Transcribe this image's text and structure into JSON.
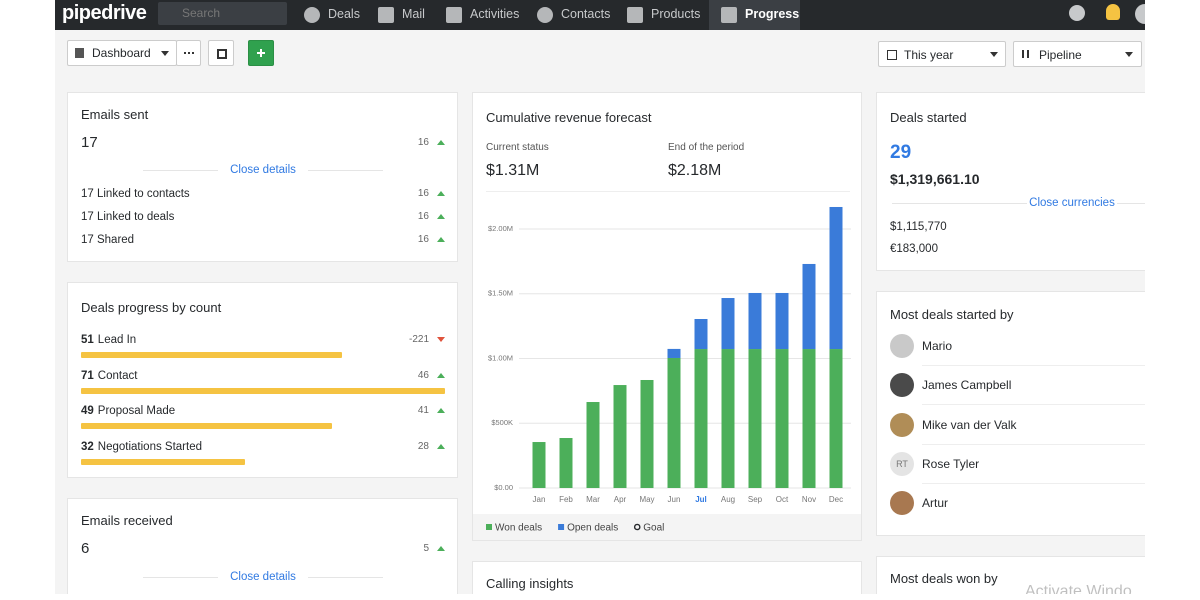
{
  "nav": {
    "logo": "pipedrive",
    "search": "Search",
    "items": [
      "Deals",
      "Mail",
      "Activities",
      "Contacts",
      "Products",
      "Progress"
    ],
    "active_index": 5
  },
  "toolbar": {
    "dashboard": "Dashboard",
    "period": "This year",
    "pipeline": "Pipeline"
  },
  "emails_sent": {
    "title": "Emails sent",
    "value": 17,
    "change": 16,
    "link": "Close details",
    "rows": [
      {
        "label": "17 Linked to contacts",
        "change": 16
      },
      {
        "label": "17 Linked to deals",
        "change": 16
      },
      {
        "label": "17 Shared",
        "change": 16
      }
    ]
  },
  "deals_progress": {
    "title": "Deals progress by count",
    "stages": [
      {
        "count": 51,
        "name": "Lead In",
        "change": -221
      },
      {
        "count": 71,
        "name": "Contact",
        "change": 46
      },
      {
        "count": 49,
        "name": "Proposal Made",
        "change": 41
      },
      {
        "count": 32,
        "name": "Negotiations Started",
        "change": 28
      }
    ]
  },
  "emails_received": {
    "title": "Emails received",
    "value": 6,
    "change": 5,
    "link": "Close details"
  },
  "chart_data": {
    "type": "bar",
    "stacked": true,
    "title": "Cumulative revenue forecast",
    "current_status_label": "Current status",
    "current_status": "$1.31M",
    "end_label": "End of the period",
    "end_value": "$2.18M",
    "categories": [
      "Jan",
      "Feb",
      "Mar",
      "Apr",
      "May",
      "Jun",
      "Jul",
      "Aug",
      "Sep",
      "Oct",
      "Nov",
      "Dec"
    ],
    "highlight_index": 6,
    "series": [
      {
        "name": "Won deals",
        "color": "#4caf5a",
        "values": [
          355000,
          386000,
          664000,
          795000,
          834000,
          1004000,
          1073000,
          1073000,
          1073000,
          1073000,
          1073000,
          1073000
        ]
      },
      {
        "name": "Open deals",
        "color": "#3a7bd9",
        "values": [
          0,
          0,
          0,
          0,
          0,
          70000,
          232000,
          394000,
          433000,
          433000,
          657000,
          1097000
        ]
      }
    ],
    "goal_label": "Goal",
    "ylim": [
      0,
      2000000
    ],
    "yticks": [
      {
        "value": 0,
        "label": "$0.00"
      },
      {
        "value": 500000,
        "label": "$500K"
      },
      {
        "value": 1000000,
        "label": "$1.00M"
      },
      {
        "value": 1500000,
        "label": "$1.50M"
      },
      {
        "value": 2000000,
        "label": "$2.00M"
      }
    ],
    "grid": true
  },
  "calling_insights": {
    "title": "Calling insights"
  },
  "deals_started": {
    "title": "Deals started",
    "count": 29,
    "total": "$1,319,661.10",
    "link": "Close currencies",
    "currencies": [
      "$1,115,770",
      "€183,000"
    ]
  },
  "most_deals_started": {
    "title": "Most deals started by",
    "people": [
      {
        "name": "Mario"
      },
      {
        "name": "James Campbell"
      },
      {
        "name": "Mike van der Valk"
      },
      {
        "name": "Rose Tyler",
        "initials": "RT"
      },
      {
        "name": "Artur"
      }
    ]
  },
  "most_deals_won": {
    "title": "Most deals won by"
  },
  "watermark": "Activate Windo"
}
